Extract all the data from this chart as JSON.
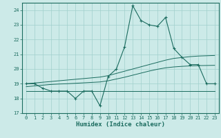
{
  "title": "",
  "xlabel": "Humidex (Indice chaleur)",
  "background_color": "#cceae8",
  "line_color": "#1a6b5e",
  "x_data": [
    0,
    1,
    2,
    3,
    4,
    5,
    6,
    7,
    8,
    9,
    10,
    11,
    12,
    13,
    14,
    15,
    16,
    17,
    18,
    19,
    20,
    21,
    22,
    23
  ],
  "y_main": [
    19.0,
    19.0,
    18.7,
    18.5,
    18.5,
    18.5,
    18.0,
    18.5,
    18.5,
    17.5,
    19.5,
    20.0,
    21.5,
    24.3,
    23.3,
    23.0,
    22.9,
    23.5,
    21.4,
    20.8,
    20.3,
    20.3,
    19.0,
    19.0
  ],
  "y_trend_upper": [
    19.0,
    19.05,
    19.1,
    19.15,
    19.2,
    19.25,
    19.3,
    19.35,
    19.4,
    19.45,
    19.55,
    19.7,
    19.85,
    20.0,
    20.15,
    20.3,
    20.45,
    20.6,
    20.72,
    20.78,
    20.84,
    20.88,
    20.9,
    20.92
  ],
  "y_trend_lower": [
    18.8,
    18.85,
    18.9,
    18.95,
    18.98,
    19.0,
    19.03,
    19.06,
    19.09,
    19.12,
    19.2,
    19.32,
    19.44,
    19.58,
    19.72,
    19.86,
    19.98,
    20.08,
    20.14,
    20.18,
    20.21,
    20.23,
    20.24,
    20.25
  ],
  "y_flat": [
    18.5,
    18.5,
    18.5,
    18.5,
    18.5,
    18.5,
    18.5,
    18.5,
    18.5,
    18.5,
    18.5,
    18.5,
    18.5,
    18.5,
    18.5,
    18.5,
    18.5,
    18.5,
    18.5,
    18.5,
    18.5,
    18.5,
    18.5,
    18.5
  ],
  "ylim": [
    17.0,
    24.5
  ],
  "xlim": [
    -0.5,
    23.5
  ],
  "yticks": [
    17,
    18,
    19,
    20,
    21,
    22,
    23,
    24
  ],
  "xticks": [
    0,
    1,
    2,
    3,
    4,
    5,
    6,
    7,
    8,
    9,
    10,
    11,
    12,
    13,
    14,
    15,
    16,
    17,
    18,
    19,
    20,
    21,
    22,
    23
  ],
  "grid_color": "#a0d0cc",
  "font_color": "#1a6b5e",
  "tick_fontsize": 5.0,
  "xlabel_fontsize": 6.5
}
